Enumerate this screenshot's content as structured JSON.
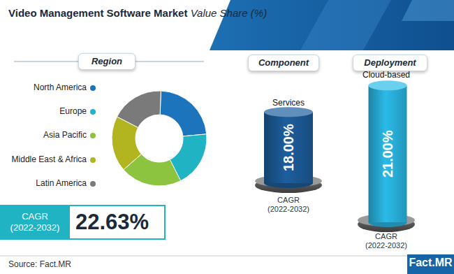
{
  "header": {
    "title": "Video Management Software Market",
    "subtitle": "Value Share (%)"
  },
  "chart_data": [
    {
      "type": "pie",
      "title": "Region",
      "categories": [
        "North America",
        "Europe",
        "Asia Pacific",
        "Middle East & Africa",
        "Latin America"
      ],
      "values": [
        23,
        19,
        21,
        19,
        18
      ],
      "colors": [
        "#1c75bc",
        "#1fb3c4",
        "#8cc43f",
        "#b3b520",
        "#7a7a7a"
      ]
    },
    {
      "type": "bar",
      "title": "Component",
      "categories": [
        "Services"
      ],
      "values": [
        18.0
      ],
      "value_labels": [
        "18.00%"
      ],
      "data_labels": true,
      "color": "#1d5f9e",
      "ylim": [
        0,
        20
      ],
      "tick_labels": false,
      "annotation": [
        "CAGR",
        "(2022-2032)"
      ]
    },
    {
      "type": "bar",
      "title": "Deployment",
      "categories": [
        "Cloud-based"
      ],
      "values": [
        21.0
      ],
      "value_labels": [
        "21.00%"
      ],
      "data_labels": true,
      "color": "#2bbbe9",
      "ylim": [
        0,
        22
      ],
      "tick_labels": false,
      "annotation": [
        "CAGR",
        "(2022-2032)"
      ]
    }
  ],
  "cagr": {
    "label": [
      "CAGR",
      "(2022-2032)"
    ],
    "value_label": "22.63%"
  },
  "footer": {
    "source": "Source: Fact.MR",
    "logo": "Fact.MR"
  }
}
